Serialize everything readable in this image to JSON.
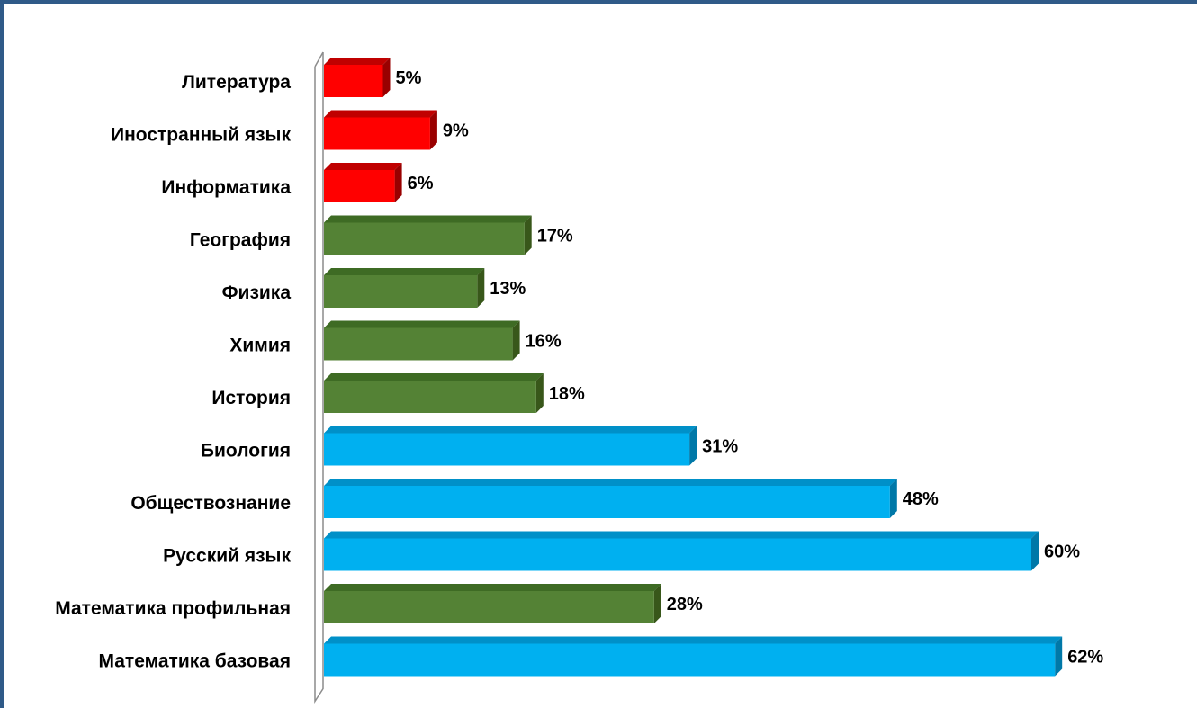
{
  "chart_data": {
    "type": "bar",
    "orientation": "horizontal",
    "style": "3d",
    "grid": false,
    "legend": "none",
    "xlim": [
      0,
      65
    ],
    "categories": [
      "Литература",
      "Иностранный язык",
      "Информатика",
      "География",
      "Физика",
      "Химия",
      "История",
      "Биология",
      "Обществознание",
      "Русский язык",
      "Математика профильная",
      "Математика базовая"
    ],
    "values": [
      5,
      9,
      6,
      17,
      13,
      16,
      18,
      31,
      48,
      60,
      28,
      62
    ],
    "value_labels": [
      "5%",
      "9%",
      "6%",
      "17%",
      "13%",
      "16%",
      "18%",
      "31%",
      "48%",
      "60%",
      "28%",
      "62%"
    ],
    "bar_groups": [
      "red",
      "red",
      "red",
      "green",
      "green",
      "green",
      "green",
      "blue",
      "blue",
      "blue",
      "green",
      "blue"
    ]
  },
  "colors": {
    "red": {
      "face": "#ff0000",
      "top": "#c00000",
      "side": "#990000"
    },
    "green": {
      "face": "#548235",
      "top": "#3e6b24",
      "side": "#38571a"
    },
    "blue": {
      "face": "#00b0f0",
      "top": "#0090c8",
      "side": "#0078a8"
    },
    "frame": "#2f5a88",
    "axis": "#8c8c8c"
  }
}
